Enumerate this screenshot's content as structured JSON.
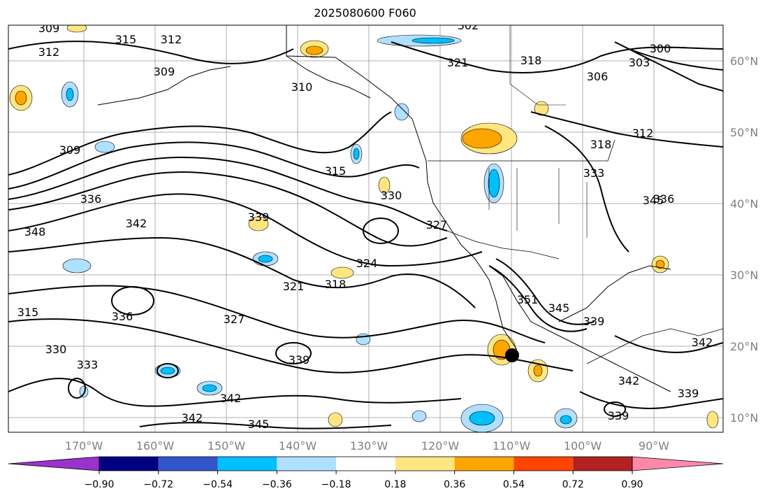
{
  "title": "2025080600 F060",
  "map": {
    "lon_labels": [
      "170°W",
      "160°W",
      "150°W",
      "140°W",
      "130°W",
      "120°W",
      "110°W",
      "100°W",
      "90°W"
    ],
    "lat_labels": [
      "60°N",
      "50°N",
      "40°N",
      "30°N",
      "20°N",
      "10°N"
    ],
    "contour_labels": [
      "309",
      "312",
      "315",
      "312",
      "309",
      "302",
      "321",
      "318",
      "300",
      "303",
      "306",
      "310",
      "309",
      "315",
      "330",
      "312",
      "318",
      "333",
      "345",
      "348",
      "336",
      "342",
      "339",
      "327",
      "324",
      "321",
      "318",
      "315",
      "336",
      "330",
      "333",
      "327",
      "339",
      "342",
      "345",
      "342",
      "351",
      "345",
      "339",
      "342",
      "339",
      "336",
      "342",
      "339"
    ],
    "marker": "storm-center"
  },
  "colorbar": {
    "bins": [
      {
        "color": "#9933cc"
      },
      {
        "color": "#000080"
      },
      {
        "color": "#3355cc"
      },
      {
        "color": "#00bfff"
      },
      {
        "color": "#b0e0ff"
      },
      {
        "color": "#ffffff"
      },
      {
        "color": "#ffe680"
      },
      {
        "color": "#ffa500"
      },
      {
        "color": "#ff4500"
      },
      {
        "color": "#b22222"
      },
      {
        "color": "#ff88aa"
      }
    ],
    "tick_labels": [
      "−0.90",
      "−0.72",
      "−0.54",
      "−0.36",
      "−0.18",
      "0.18",
      "0.36",
      "0.54",
      "0.72",
      "0.90"
    ]
  }
}
